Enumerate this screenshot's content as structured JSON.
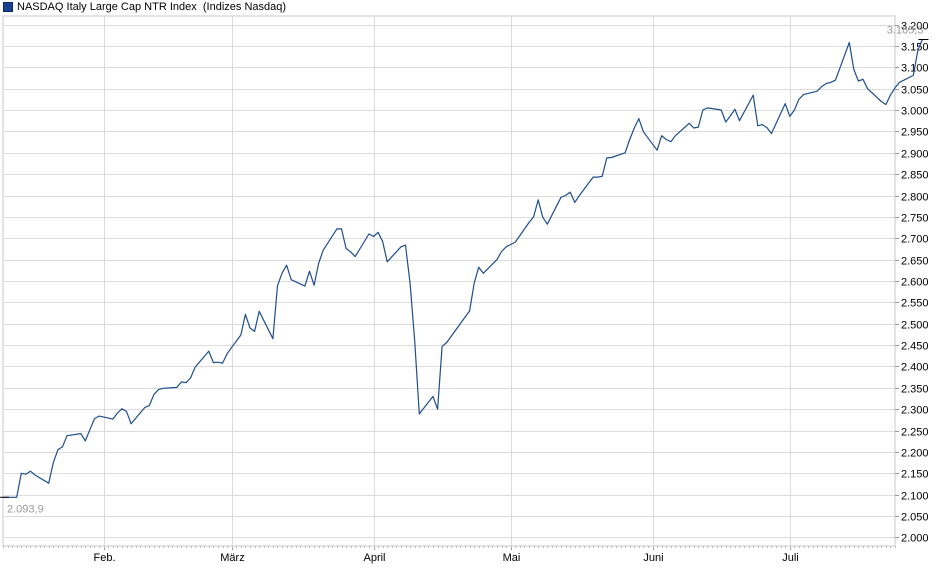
{
  "legend": {
    "series_name": "NASDAQ Italy Large Cap NTR Index",
    "source": "(Indizes Nasdaq)"
  },
  "colors": {
    "line": "#1f4e8c",
    "grid": "#dcdcdc",
    "axis_text": "#000000",
    "annotation_text": "#9a9a9a"
  },
  "chart_data": {
    "type": "line",
    "title": "",
    "xlabel": "",
    "ylabel": "",
    "ylim": [
      1980,
      3220
    ],
    "yticks": [
      2000,
      2050,
      2100,
      2150,
      2200,
      2250,
      2300,
      2350,
      2400,
      2450,
      2500,
      2550,
      2600,
      2650,
      2700,
      2750,
      2800,
      2850,
      2900,
      2950,
      3000,
      3050,
      3100,
      3150,
      3200
    ],
    "ytick_labels": [
      "2.000",
      "2.050",
      "2.100",
      "2.150",
      "2.200",
      "2.250",
      "2.300",
      "2.350",
      "2.400",
      "2.450",
      "2.500",
      "2.550",
      "2.600",
      "2.650",
      "2.700",
      "2.750",
      "2.800",
      "2.850",
      "2.900",
      "2.950",
      "3.000",
      "3.050",
      "3.100",
      "3.150",
      "3.200"
    ],
    "xlim": [
      "2025-01-10",
      "2025-07-24"
    ],
    "xticks": [
      "2025-02-01",
      "2025-03-01",
      "2025-04-01",
      "2025-05-01",
      "2025-06-01",
      "2025-07-01"
    ],
    "xtick_labels": [
      "Feb.",
      "März",
      "April",
      "Mai",
      "Juni",
      "Juli"
    ],
    "grid": true,
    "legend_position": "top-left",
    "min_label": "2.093,9",
    "max_label": "3.165,3",
    "series": [
      {
        "name": "NASDAQ Italy Large Cap NTR Index",
        "points": [
          [
            "2025-01-10",
            2094
          ],
          [
            "2025-01-13",
            2094
          ],
          [
            "2025-01-14",
            2150
          ],
          [
            "2025-01-15",
            2148
          ],
          [
            "2025-01-16",
            2155
          ],
          [
            "2025-01-17",
            2146
          ],
          [
            "2025-01-20",
            2127
          ],
          [
            "2025-01-21",
            2175
          ],
          [
            "2025-01-22",
            2205
          ],
          [
            "2025-01-23",
            2212
          ],
          [
            "2025-01-24",
            2238
          ],
          [
            "2025-01-27",
            2243
          ],
          [
            "2025-01-28",
            2226
          ],
          [
            "2025-01-29",
            2252
          ],
          [
            "2025-01-30",
            2278
          ],
          [
            "2025-01-31",
            2284
          ],
          [
            "2025-02-03",
            2277
          ],
          [
            "2025-02-04",
            2291
          ],
          [
            "2025-02-05",
            2301
          ],
          [
            "2025-02-06",
            2295
          ],
          [
            "2025-02-07",
            2266
          ],
          [
            "2025-02-10",
            2304
          ],
          [
            "2025-02-11",
            2309
          ],
          [
            "2025-02-12",
            2335
          ],
          [
            "2025-02-13",
            2346
          ],
          [
            "2025-02-14",
            2349
          ],
          [
            "2025-02-17",
            2351
          ],
          [
            "2025-02-18",
            2364
          ],
          [
            "2025-02-19",
            2362
          ],
          [
            "2025-02-20",
            2373
          ],
          [
            "2025-02-21",
            2398
          ],
          [
            "2025-02-24",
            2436
          ],
          [
            "2025-02-25",
            2409
          ],
          [
            "2025-02-26",
            2410
          ],
          [
            "2025-02-27",
            2408
          ],
          [
            "2025-02-28",
            2430
          ],
          [
            "2025-03-03",
            2474
          ],
          [
            "2025-03-04",
            2522
          ],
          [
            "2025-03-05",
            2490
          ],
          [
            "2025-03-06",
            2482
          ],
          [
            "2025-03-07",
            2529
          ],
          [
            "2025-03-10",
            2465
          ],
          [
            "2025-03-11",
            2589
          ],
          [
            "2025-03-12",
            2618
          ],
          [
            "2025-03-13",
            2637
          ],
          [
            "2025-03-14",
            2603
          ],
          [
            "2025-03-17",
            2588
          ],
          [
            "2025-03-18",
            2623
          ],
          [
            "2025-03-19",
            2590
          ],
          [
            "2025-03-20",
            2641
          ],
          [
            "2025-03-21",
            2672
          ],
          [
            "2025-03-24",
            2722
          ],
          [
            "2025-03-25",
            2722
          ],
          [
            "2025-03-26",
            2676
          ],
          [
            "2025-03-27",
            2668
          ],
          [
            "2025-03-28",
            2657
          ],
          [
            "2025-03-31",
            2710
          ],
          [
            "2025-04-01",
            2704
          ],
          [
            "2025-04-02",
            2714
          ],
          [
            "2025-04-03",
            2692
          ],
          [
            "2025-04-04",
            2645
          ],
          [
            "2025-04-07",
            2680
          ],
          [
            "2025-04-08",
            2684
          ],
          [
            "2025-04-09",
            2594
          ],
          [
            "2025-04-10",
            2460
          ],
          [
            "2025-04-11",
            2289
          ],
          [
            "2025-04-14",
            2330
          ],
          [
            "2025-04-15",
            2300
          ],
          [
            "2025-04-16",
            2447
          ],
          [
            "2025-04-17",
            2456
          ],
          [
            "2025-04-22",
            2530
          ],
          [
            "2025-04-23",
            2595
          ],
          [
            "2025-04-24",
            2632
          ],
          [
            "2025-04-25",
            2618
          ],
          [
            "2025-04-28",
            2650
          ],
          [
            "2025-04-29",
            2669
          ],
          [
            "2025-04-30",
            2680
          ],
          [
            "2025-05-02",
            2691
          ],
          [
            "2025-05-05",
            2737
          ],
          [
            "2025-05-06",
            2750
          ],
          [
            "2025-05-07",
            2790
          ],
          [
            "2025-05-08",
            2749
          ],
          [
            "2025-05-09",
            2733
          ],
          [
            "2025-05-12",
            2796
          ],
          [
            "2025-05-13",
            2800
          ],
          [
            "2025-05-14",
            2808
          ],
          [
            "2025-05-15",
            2784
          ],
          [
            "2025-05-16",
            2800
          ],
          [
            "2025-05-19",
            2843
          ],
          [
            "2025-05-20",
            2843
          ],
          [
            "2025-05-21",
            2845
          ],
          [
            "2025-05-22",
            2888
          ],
          [
            "2025-05-23",
            2889
          ],
          [
            "2025-05-26",
            2900
          ],
          [
            "2025-05-27",
            2931
          ],
          [
            "2025-05-28",
            2958
          ],
          [
            "2025-05-29",
            2980
          ],
          [
            "2025-05-30",
            2949
          ],
          [
            "2025-06-02",
            2906
          ],
          [
            "2025-06-03",
            2940
          ],
          [
            "2025-06-04",
            2931
          ],
          [
            "2025-06-05",
            2926
          ],
          [
            "2025-06-06",
            2940
          ],
          [
            "2025-06-09",
            2969
          ],
          [
            "2025-06-10",
            2958
          ],
          [
            "2025-06-11",
            2960
          ],
          [
            "2025-06-12",
            3000
          ],
          [
            "2025-06-13",
            3005
          ],
          [
            "2025-06-16",
            3000
          ],
          [
            "2025-06-17",
            2972
          ],
          [
            "2025-06-18",
            2986
          ],
          [
            "2025-06-19",
            3002
          ],
          [
            "2025-06-20",
            2975
          ],
          [
            "2025-06-23",
            3035
          ],
          [
            "2025-06-24",
            2963
          ],
          [
            "2025-06-25",
            2966
          ],
          [
            "2025-06-26",
            2959
          ],
          [
            "2025-06-27",
            2945
          ],
          [
            "2025-06-30",
            3015
          ],
          [
            "2025-07-01",
            2985
          ],
          [
            "2025-07-02",
            3000
          ],
          [
            "2025-07-03",
            3025
          ],
          [
            "2025-07-04",
            3036
          ],
          [
            "2025-07-07",
            3044
          ],
          [
            "2025-07-08",
            3055
          ],
          [
            "2025-07-09",
            3062
          ],
          [
            "2025-07-10",
            3065
          ],
          [
            "2025-07-11",
            3070
          ],
          [
            "2025-07-14",
            3158
          ],
          [
            "2025-07-15",
            3095
          ],
          [
            "2025-07-16",
            3068
          ],
          [
            "2025-07-17",
            3072
          ],
          [
            "2025-07-18",
            3050
          ],
          [
            "2025-07-21",
            3020
          ],
          [
            "2025-07-22",
            3013
          ],
          [
            "2025-07-23",
            3035
          ],
          [
            "2025-07-24",
            3052
          ],
          [
            "2025-07-25",
            3065
          ],
          [
            "2025-07-28",
            3081
          ],
          [
            "2025-07-29",
            3140
          ],
          [
            "2025-07-30",
            3165
          ]
        ]
      }
    ]
  }
}
